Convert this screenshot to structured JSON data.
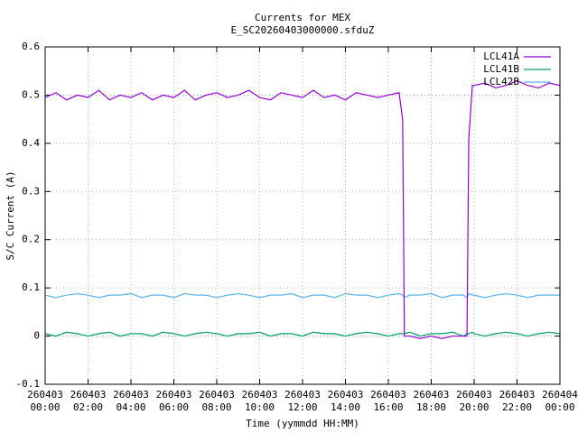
{
  "chart_data": {
    "type": "line",
    "title": "Currents for MEX",
    "subtitle": "E_SC20260403000000.sfduZ",
    "x_label": "Time (yymmdd HH:MM)",
    "y_label": "S/C Current (A)",
    "x": [
      "260403 00:00",
      "260403 00:30",
      "260403 01:00",
      "260403 01:30",
      "260403 02:00",
      "260403 02:30",
      "260403 03:00",
      "260403 03:30",
      "260403 04:00",
      "260403 04:30",
      "260403 05:00",
      "260403 05:30",
      "260403 06:00",
      "260403 06:30",
      "260403 07:00",
      "260403 07:30",
      "260403 08:00",
      "260403 08:30",
      "260403 09:00",
      "260403 09:30",
      "260403 10:00",
      "260403 10:30",
      "260403 11:00",
      "260403 11:30",
      "260403 12:00",
      "260403 12:30",
      "260403 13:00",
      "260403 13:30",
      "260403 14:00",
      "260403 14:30",
      "260403 15:00",
      "260403 15:30",
      "260403 16:00",
      "260403 16:30",
      "260403 16:40",
      "260403 16:45",
      "260403 17:00",
      "260403 17:30",
      "260403 18:00",
      "260403 18:30",
      "260403 19:00",
      "260403 19:30",
      "260403 19:40",
      "260403 19:45",
      "260403 19:55",
      "260403 20:00",
      "260403 20:30",
      "260403 21:00",
      "260403 21:30",
      "260403 22:00",
      "260403 22:30",
      "260403 23:00",
      "260403 23:30",
      "260404 00:00"
    ],
    "series": [
      {
        "name": "LCL41A",
        "color": "#9400d3",
        "values": [
          0.495,
          0.505,
          0.49,
          0.5,
          0.495,
          0.51,
          0.49,
          0.5,
          0.495,
          0.505,
          0.49,
          0.5,
          0.495,
          0.51,
          0.49,
          0.5,
          0.505,
          0.495,
          0.5,
          0.51,
          0.495,
          0.49,
          0.505,
          0.5,
          0.495,
          0.51,
          0.495,
          0.5,
          0.49,
          0.505,
          0.5,
          0.495,
          0.5,
          0.505,
          0.45,
          0,
          0,
          -0.005,
          0,
          -0.005,
          0,
          0,
          0,
          0.41,
          0.52,
          0.52,
          0.525,
          0.515,
          0.52,
          0.53,
          0.52,
          0.515,
          0.525,
          0.52
        ]
      },
      {
        "name": "LCL41B",
        "color": "#009e73",
        "values": [
          0.005,
          0.0,
          0.008,
          0.005,
          0.0,
          0.005,
          0.008,
          0.0,
          0.005,
          0.005,
          0.0,
          0.008,
          0.005,
          0.0,
          0.005,
          0.008,
          0.005,
          0.0,
          0.005,
          0.005,
          0.008,
          0.0,
          0.005,
          0.005,
          0.0,
          0.008,
          0.005,
          0.005,
          0.0,
          0.005,
          0.008,
          0.005,
          0.0,
          0.005,
          0.005,
          0.005,
          0.008,
          0.0,
          0.005,
          0.005,
          0.008,
          0.0,
          0.005,
          0.005,
          0.008,
          0.005,
          0.0,
          0.005,
          0.008,
          0.005,
          0.0,
          0.005,
          0.008,
          0.005
        ]
      },
      {
        "name": "LCL42B",
        "color": "#56b4e9",
        "values": [
          0.085,
          0.08,
          0.085,
          0.088,
          0.085,
          0.08,
          0.085,
          0.085,
          0.088,
          0.08,
          0.085,
          0.085,
          0.08,
          0.088,
          0.085,
          0.085,
          0.08,
          0.085,
          0.088,
          0.085,
          0.08,
          0.085,
          0.085,
          0.088,
          0.08,
          0.085,
          0.085,
          0.08,
          0.088,
          0.085,
          0.085,
          0.08,
          0.085,
          0.088,
          0.085,
          0.08,
          0.085,
          0.085,
          0.088,
          0.08,
          0.085,
          0.085,
          0.08,
          0.088,
          0.085,
          0.085,
          0.08,
          0.085,
          0.088,
          0.085,
          0.08,
          0.085,
          0.085,
          0.085
        ]
      }
    ],
    "xlim": [
      "260403 00:00",
      "260404 00:00"
    ],
    "xticks": [
      "260403 00:00",
      "260403 02:00",
      "260403 04:00",
      "260403 06:00",
      "260403 08:00",
      "260403 10:00",
      "260403 12:00",
      "260403 14:00",
      "260403 16:00",
      "260403 18:00",
      "260403 20:00",
      "260403 22:00",
      "260404 00:00"
    ],
    "ylim": [
      -0.1,
      0.6
    ],
    "yticks": [
      -0.1,
      0,
      0.1,
      0.2,
      0.3,
      0.4,
      0.5,
      0.6
    ],
    "grid": true,
    "legend": "top-right"
  }
}
